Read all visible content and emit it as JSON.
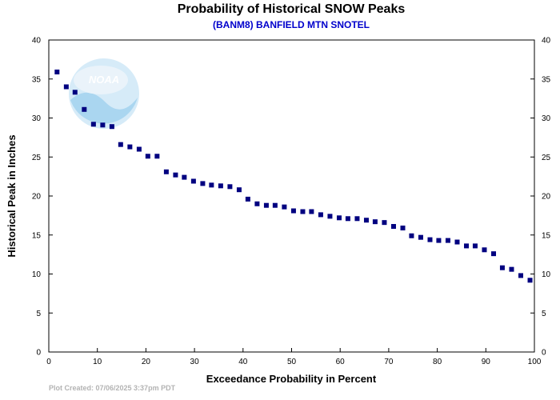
{
  "chart_data": {
    "type": "scatter",
    "title": "Probability of Historical SNOW Peaks",
    "subtitle": "(BANM8) BANFIELD MTN SNOTEL",
    "xlabel": "Exceedance Probability in Percent",
    "ylabel": "Historical Peak in Inches",
    "xlim": [
      0,
      100
    ],
    "ylim": [
      0,
      40
    ],
    "x_ticks": [
      "0",
      "10",
      "20",
      "30",
      "40",
      "50",
      "60",
      "70",
      "80",
      "90",
      "100"
    ],
    "y_ticks": [
      "0",
      "5",
      "10",
      "15",
      "20",
      "25",
      "30",
      "35",
      "40"
    ],
    "y_ticks_right": true,
    "grid": false,
    "legend": "none",
    "points": [
      {
        "x": 1.7,
        "y": 35.9
      },
      {
        "x": 3.6,
        "y": 34.0
      },
      {
        "x": 5.4,
        "y": 33.3
      },
      {
        "x": 7.3,
        "y": 31.1
      },
      {
        "x": 9.2,
        "y": 29.2
      },
      {
        "x": 11.1,
        "y": 29.1
      },
      {
        "x": 13.0,
        "y": 28.9
      },
      {
        "x": 14.8,
        "y": 26.6
      },
      {
        "x": 16.7,
        "y": 26.3
      },
      {
        "x": 18.6,
        "y": 26.0
      },
      {
        "x": 20.4,
        "y": 25.1
      },
      {
        "x": 22.3,
        "y": 25.1
      },
      {
        "x": 24.2,
        "y": 23.1
      },
      {
        "x": 26.1,
        "y": 22.7
      },
      {
        "x": 27.9,
        "y": 22.4
      },
      {
        "x": 29.8,
        "y": 21.9
      },
      {
        "x": 31.7,
        "y": 21.6
      },
      {
        "x": 33.5,
        "y": 21.4
      },
      {
        "x": 35.4,
        "y": 21.3
      },
      {
        "x": 37.3,
        "y": 21.2
      },
      {
        "x": 39.2,
        "y": 20.8
      },
      {
        "x": 41.0,
        "y": 19.6
      },
      {
        "x": 42.9,
        "y": 19.0
      },
      {
        "x": 44.8,
        "y": 18.8
      },
      {
        "x": 46.6,
        "y": 18.8
      },
      {
        "x": 48.5,
        "y": 18.6
      },
      {
        "x": 50.4,
        "y": 18.1
      },
      {
        "x": 52.3,
        "y": 18.0
      },
      {
        "x": 54.1,
        "y": 18.0
      },
      {
        "x": 56.0,
        "y": 17.6
      },
      {
        "x": 57.9,
        "y": 17.4
      },
      {
        "x": 59.8,
        "y": 17.2
      },
      {
        "x": 61.6,
        "y": 17.1
      },
      {
        "x": 63.5,
        "y": 17.1
      },
      {
        "x": 65.4,
        "y": 16.9
      },
      {
        "x": 67.2,
        "y": 16.7
      },
      {
        "x": 69.1,
        "y": 16.6
      },
      {
        "x": 71.0,
        "y": 16.1
      },
      {
        "x": 72.9,
        "y": 15.9
      },
      {
        "x": 74.7,
        "y": 14.9
      },
      {
        "x": 76.6,
        "y": 14.7
      },
      {
        "x": 78.5,
        "y": 14.4
      },
      {
        "x": 80.3,
        "y": 14.3
      },
      {
        "x": 82.2,
        "y": 14.3
      },
      {
        "x": 84.1,
        "y": 14.1
      },
      {
        "x": 86.0,
        "y": 13.6
      },
      {
        "x": 87.8,
        "y": 13.6
      },
      {
        "x": 89.7,
        "y": 13.1
      },
      {
        "x": 91.6,
        "y": 12.6
      },
      {
        "x": 93.4,
        "y": 10.8
      },
      {
        "x": 95.3,
        "y": 10.6
      },
      {
        "x": 97.2,
        "y": 9.8
      },
      {
        "x": 99.1,
        "y": 9.2
      }
    ]
  },
  "colors": {
    "title": "#000000",
    "subtitle": "#0000cc",
    "marker": "#000080",
    "axis": "#000000",
    "credit": "#b3b3b3",
    "logo_light": "#cfe8f7",
    "logo_dark": "#9ccfee"
  },
  "logo": {
    "text": "NOAA",
    "icon": "noaa-logo"
  },
  "credit": "Plot Created: 07/06/2025 3:37pm PDT"
}
